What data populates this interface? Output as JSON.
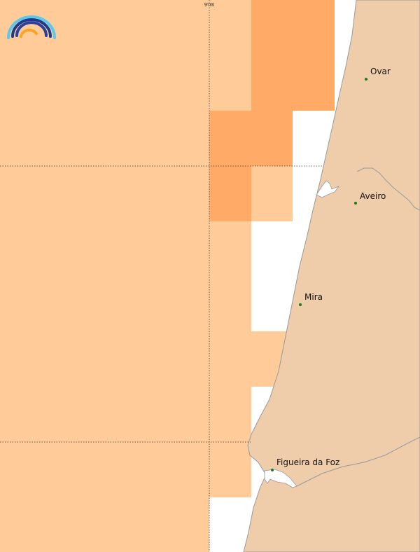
{
  "map": {
    "longitude_label": "9ºW",
    "colors": {
      "sea": "#ffffff",
      "land": "#efcdaa",
      "coastline": "#9a9a9a",
      "zone_light": "#ffcc99",
      "zone_dark": "#ffaa66",
      "grid_line": "#333333",
      "city_dot": "#1a7a1a"
    },
    "zone_levels": [
      "light",
      "dark"
    ],
    "cities": [
      {
        "name": "Ovar"
      },
      {
        "name": "Aveiro"
      },
      {
        "name": "Mira"
      },
      {
        "name": "Figueira da Foz"
      }
    ],
    "logo": {
      "icon": "rainbow-arcs-logo-icon"
    }
  }
}
